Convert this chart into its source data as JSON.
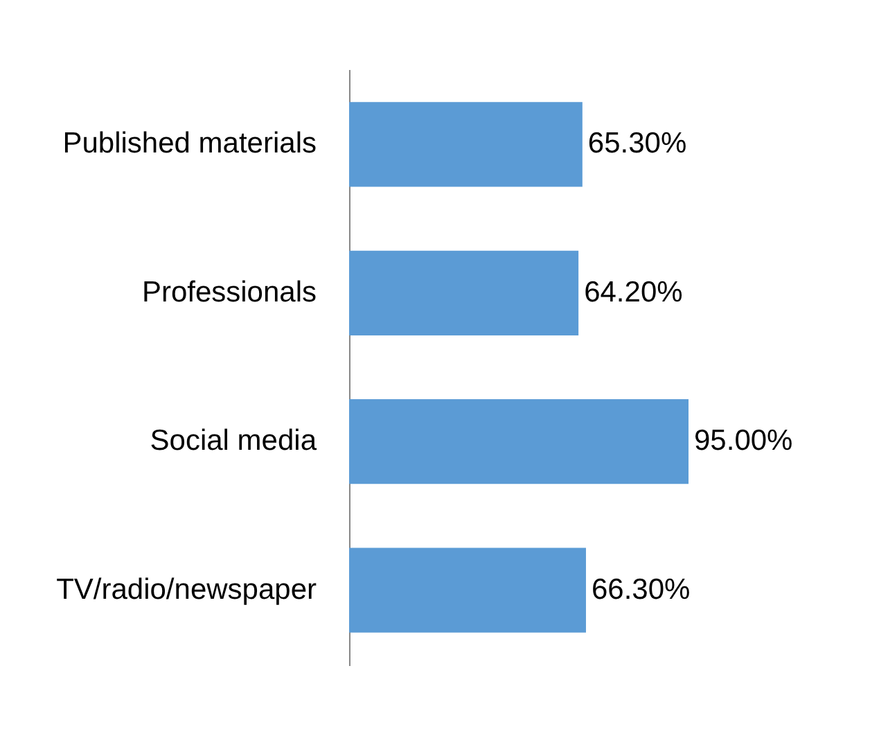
{
  "chart_data": {
    "type": "bar",
    "orientation": "horizontal",
    "categories": [
      "Published materials",
      "Professionals",
      "Social media",
      "TV/radio/newspaper"
    ],
    "values": [
      65.3,
      64.2,
      95.0,
      66.3
    ],
    "value_labels": [
      "65.30%",
      "64.20%",
      "95.00%",
      "66.30%"
    ],
    "color": "#5b9bd5",
    "tick_labels": "y"
  }
}
